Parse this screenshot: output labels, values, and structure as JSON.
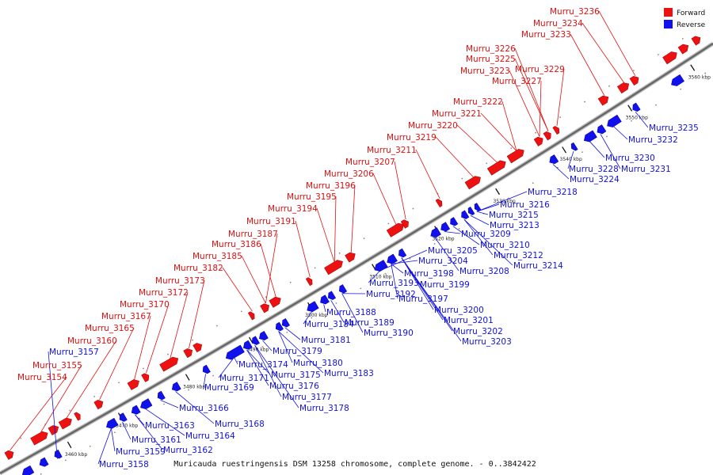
{
  "title": "Muricauda ruestringensis DSM 13258 chromosome, complete genome. - 0..3842422",
  "legend": [
    {
      "label": "Forward",
      "color": "#ee1111"
    },
    {
      "label": "Reverse",
      "color": "#1111ee"
    }
  ],
  "colors": {
    "forward": "#ee1111",
    "reverse": "#1111ee",
    "backbone": "#666666"
  },
  "ticks": [
    "3460 kbp",
    "3470 kbp",
    "3480 kbp",
    "3490 kbp",
    "3500 kbp",
    "3510 kbp",
    "3520 kbp",
    "3530 kbp",
    "3540 kbp",
    "3550 kbp",
    "3560 kbp"
  ],
  "forward_genes": [
    "Murru_3154",
    "Murru_3155",
    "Murru_3160",
    "Murru_3165",
    "Murru_3167",
    "Murru_3170",
    "Murru_3172",
    "Murru_3173",
    "Murru_3182",
    "Murru_3185",
    "Murru_3186",
    "Murru_3187",
    "Murru_3191",
    "Murru_3194",
    "Murru_3195",
    "Murru_3196",
    "Murru_3206",
    "Murru_3207",
    "Murru_3211",
    "Murru_3219",
    "Murru_3220",
    "Murru_3221",
    "Murru_3222",
    "Murru_3223",
    "Murru_3225",
    "Murru_3226",
    "Murru_3227",
    "Murru_3229",
    "Murru_3233",
    "Murru_3234",
    "Murru_3236"
  ],
  "reverse_genes": [
    "Murru_3157",
    "Murru_3158",
    "Murru_3159",
    "Murru_3161",
    "Murru_3162",
    "Murru_3163",
    "Murru_3164",
    "Murru_3166",
    "Murru_3168",
    "Murru_3169",
    "Murru_3171",
    "Murru_3174",
    "Murru_3175",
    "Murru_3176",
    "Murru_3177",
    "Murru_3178",
    "Murru_3179",
    "Murru_3180",
    "Murru_3181",
    "Murru_3183",
    "Murru_3184",
    "Murru_3188",
    "Murru_3189",
    "Murru_3190",
    "Murru_3192",
    "Murru_3193",
    "Murru_3197",
    "Murru_3198",
    "Murru_3199",
    "Murru_3200",
    "Murru_3201",
    "Murru_3202",
    "Murru_3203",
    "Murru_3204",
    "Murru_3205",
    "Murru_3208",
    "Murru_3209",
    "Murru_3210",
    "Murru_3212",
    "Murru_3213",
    "Murru_3214",
    "Murru_3215",
    "Murru_3216",
    "Murru_3218",
    "Murru_3224",
    "Murru_3228",
    "Murru_3230",
    "Murru_3231",
    "Murru_3232",
    "Murru_3235"
  ]
}
